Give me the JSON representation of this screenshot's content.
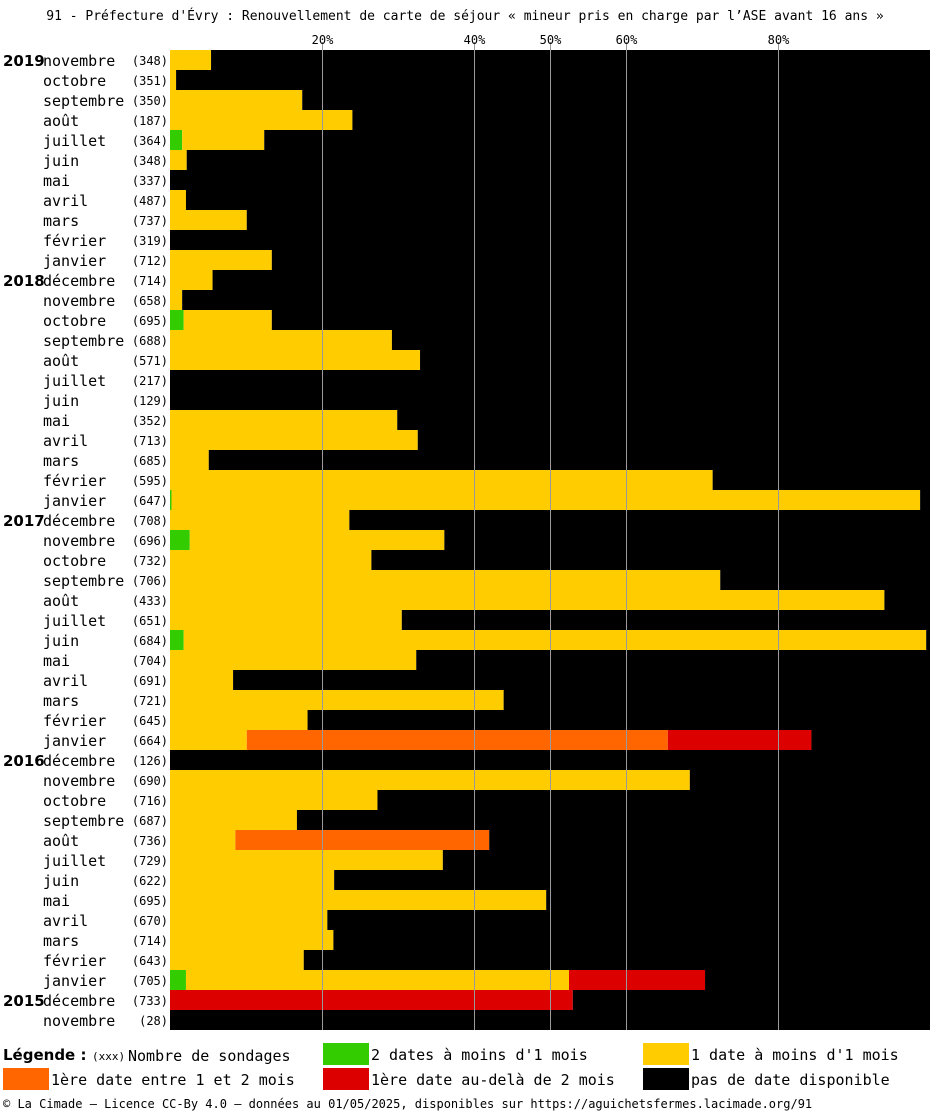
{
  "title": "91 - Préfecture d'Évry : Renouvellement de carte de séjour « mineur pris en charge par l’ASE avant 16 ans »",
  "footer": "© La Cimade — Licence CC-By 4.0 — données au 01/05/2025, disponibles sur https://aguichetsfermes.lacimade.org/91",
  "legend": {
    "title": "Légende :",
    "count_marker": "(xxx)",
    "count_label": "Nombre de sondages",
    "items": [
      {
        "key": "green",
        "label": "2 dates à moins d'1 mois",
        "color": "#33cc00"
      },
      {
        "key": "yellow",
        "label": "1 date à moins d'1 mois",
        "color": "#ffcc00"
      },
      {
        "key": "orange",
        "label": "1ère date entre 1 et 2 mois",
        "color": "#ff6600"
      },
      {
        "key": "red",
        "label": "1ère date au-delà de 2 mois",
        "color": "#dd0000"
      },
      {
        "key": "black",
        "label": "pas de date disponible",
        "color": "#000000"
      }
    ]
  },
  "chart_data": {
    "type": "bar",
    "orientation": "horizontal",
    "stacked": true,
    "x_ticks": [
      20,
      40,
      50,
      60,
      80
    ],
    "x_tick_labels": [
      "20%",
      "40%",
      "50%",
      "60%",
      "80%"
    ],
    "xlim": [
      0,
      100
    ],
    "grid": true,
    "series": [
      {
        "key": "green",
        "name": "2 dates à moins d'1 mois"
      },
      {
        "key": "yellow",
        "name": "1 date à moins d'1 mois"
      },
      {
        "key": "orange",
        "name": "1ère date entre 1 et 2 mois"
      },
      {
        "key": "red",
        "name": "1ère date au-delà de 2 mois"
      },
      {
        "key": "black",
        "name": "pas de date disponible"
      }
    ],
    "rows": [
      {
        "year": "2019",
        "month": "novembre",
        "count": "(348)",
        "values": [
          0,
          5.4,
          0,
          0,
          94.6
        ]
      },
      {
        "year": "",
        "month": "octobre",
        "count": "(351)",
        "values": [
          0,
          0.8,
          0,
          0,
          99.2
        ]
      },
      {
        "year": "",
        "month": "septembre",
        "count": "(350)",
        "values": [
          0,
          17.4,
          0,
          0,
          82.6
        ]
      },
      {
        "year": "",
        "month": "août",
        "count": "(187)",
        "values": [
          0,
          24.0,
          0,
          0,
          76.0
        ]
      },
      {
        "year": "",
        "month": "juillet",
        "count": "(364)",
        "values": [
          1.6,
          10.8,
          0,
          0,
          87.6
        ]
      },
      {
        "year": "",
        "month": "juin",
        "count": "(348)",
        "values": [
          0,
          2.2,
          0,
          0,
          97.8
        ]
      },
      {
        "year": "",
        "month": "mai",
        "count": "(337)",
        "values": [
          0,
          0,
          0,
          0,
          100
        ]
      },
      {
        "year": "",
        "month": "avril",
        "count": "(487)",
        "values": [
          0,
          2.1,
          0,
          0,
          97.9
        ]
      },
      {
        "year": "",
        "month": "mars",
        "count": "(737)",
        "values": [
          0,
          10.1,
          0,
          0,
          89.9
        ]
      },
      {
        "year": "",
        "month": "février",
        "count": "(319)",
        "values": [
          0,
          0,
          0,
          0,
          100
        ]
      },
      {
        "year": "",
        "month": "janvier",
        "count": "(712)",
        "values": [
          0,
          13.4,
          0,
          0,
          86.6
        ]
      },
      {
        "year": "2018",
        "month": "décembre",
        "count": "(714)",
        "values": [
          0,
          5.6,
          0,
          0,
          94.4
        ]
      },
      {
        "year": "",
        "month": "novembre",
        "count": "(658)",
        "values": [
          0,
          1.6,
          0,
          0,
          98.4
        ]
      },
      {
        "year": "",
        "month": "octobre",
        "count": "(695)",
        "values": [
          1.8,
          11.6,
          0,
          0,
          86.6
        ]
      },
      {
        "year": "",
        "month": "septembre",
        "count": "(688)",
        "values": [
          0,
          29.2,
          0,
          0,
          70.8
        ]
      },
      {
        "year": "",
        "month": "août",
        "count": "(571)",
        "values": [
          0,
          32.9,
          0,
          0,
          67.1
        ]
      },
      {
        "year": "",
        "month": "juillet",
        "count": "(217)",
        "values": [
          0,
          0,
          0,
          0,
          100
        ]
      },
      {
        "year": "",
        "month": "juin",
        "count": "(129)",
        "values": [
          0,
          0,
          0,
          0,
          100
        ]
      },
      {
        "year": "",
        "month": "mai",
        "count": "(352)",
        "values": [
          0,
          29.9,
          0,
          0,
          70.1
        ]
      },
      {
        "year": "",
        "month": "avril",
        "count": "(713)",
        "values": [
          0,
          32.6,
          0,
          0,
          67.4
        ]
      },
      {
        "year": "",
        "month": "mars",
        "count": "(685)",
        "values": [
          0,
          5.1,
          0,
          0,
          94.9
        ]
      },
      {
        "year": "",
        "month": "février",
        "count": "(595)",
        "values": [
          0,
          71.4,
          0,
          0,
          28.6
        ]
      },
      {
        "year": "",
        "month": "janvier",
        "count": "(647)",
        "values": [
          0.2,
          98.5,
          0,
          0,
          1.3
        ]
      },
      {
        "year": "2017",
        "month": "décembre",
        "count": "(708)",
        "values": [
          0,
          23.6,
          0,
          0,
          76.4
        ]
      },
      {
        "year": "",
        "month": "novembre",
        "count": "(696)",
        "values": [
          2.6,
          33.5,
          0,
          0,
          63.9
        ]
      },
      {
        "year": "",
        "month": "octobre",
        "count": "(732)",
        "values": [
          0,
          26.5,
          0,
          0,
          73.5
        ]
      },
      {
        "year": "",
        "month": "septembre",
        "count": "(706)",
        "values": [
          0,
          72.4,
          0,
          0,
          27.6
        ]
      },
      {
        "year": "",
        "month": "août",
        "count": "(433)",
        "values": [
          0,
          94.0,
          0,
          0,
          6.0
        ]
      },
      {
        "year": "",
        "month": "juillet",
        "count": "(651)",
        "values": [
          0,
          30.5,
          0,
          0,
          69.5
        ]
      },
      {
        "year": "",
        "month": "juin",
        "count": "(684)",
        "values": [
          1.8,
          97.7,
          0,
          0,
          0.5
        ]
      },
      {
        "year": "",
        "month": "mai",
        "count": "(704)",
        "values": [
          0,
          32.4,
          0,
          0,
          67.6
        ]
      },
      {
        "year": "",
        "month": "avril",
        "count": "(691)",
        "values": [
          0,
          8.3,
          0,
          0,
          91.7
        ]
      },
      {
        "year": "",
        "month": "mars",
        "count": "(721)",
        "values": [
          0,
          43.9,
          0,
          0,
          56.1
        ]
      },
      {
        "year": "",
        "month": "février",
        "count": "(645)",
        "values": [
          0,
          18.1,
          0,
          0,
          81.9
        ]
      },
      {
        "year": "",
        "month": "janvier",
        "count": "(664)",
        "values": [
          0,
          10.1,
          55.4,
          18.9,
          15.6
        ]
      },
      {
        "year": "2016",
        "month": "décembre",
        "count": "(126)",
        "values": [
          0,
          0,
          0,
          0,
          100
        ]
      },
      {
        "year": "",
        "month": "novembre",
        "count": "(690)",
        "values": [
          0,
          68.4,
          0,
          0,
          31.6
        ]
      },
      {
        "year": "",
        "month": "octobre",
        "count": "(716)",
        "values": [
          0,
          27.3,
          0,
          0,
          72.7
        ]
      },
      {
        "year": "",
        "month": "septembre",
        "count": "(687)",
        "values": [
          0,
          16.7,
          0,
          0,
          83.3
        ]
      },
      {
        "year": "",
        "month": "août",
        "count": "(736)",
        "values": [
          0,
          8.6,
          33.4,
          0,
          58.0
        ]
      },
      {
        "year": "",
        "month": "juillet",
        "count": "(729)",
        "values": [
          0,
          35.9,
          0,
          0,
          64.1
        ]
      },
      {
        "year": "",
        "month": "juin",
        "count": "(622)",
        "values": [
          0,
          21.6,
          0,
          0,
          78.4
        ]
      },
      {
        "year": "",
        "month": "mai",
        "count": "(695)",
        "values": [
          0,
          49.5,
          0,
          0,
          50.5
        ]
      },
      {
        "year": "",
        "month": "avril",
        "count": "(670)",
        "values": [
          0,
          20.7,
          0,
          0,
          79.3
        ]
      },
      {
        "year": "",
        "month": "mars",
        "count": "(714)",
        "values": [
          0,
          21.5,
          0,
          0,
          78.5
        ]
      },
      {
        "year": "",
        "month": "février",
        "count": "(643)",
        "values": [
          0,
          17.6,
          0,
          0,
          82.4
        ]
      },
      {
        "year": "",
        "month": "janvier",
        "count": "(705)",
        "values": [
          2.1,
          50.4,
          0,
          17.9,
          29.6
        ]
      },
      {
        "year": "2015",
        "month": "décembre",
        "count": "(733)",
        "values": [
          0,
          0,
          0,
          53.0,
          47.0
        ]
      },
      {
        "year": "",
        "month": "novembre",
        "count": "(28)",
        "values": [
          0,
          0,
          0,
          0,
          100
        ]
      }
    ]
  }
}
